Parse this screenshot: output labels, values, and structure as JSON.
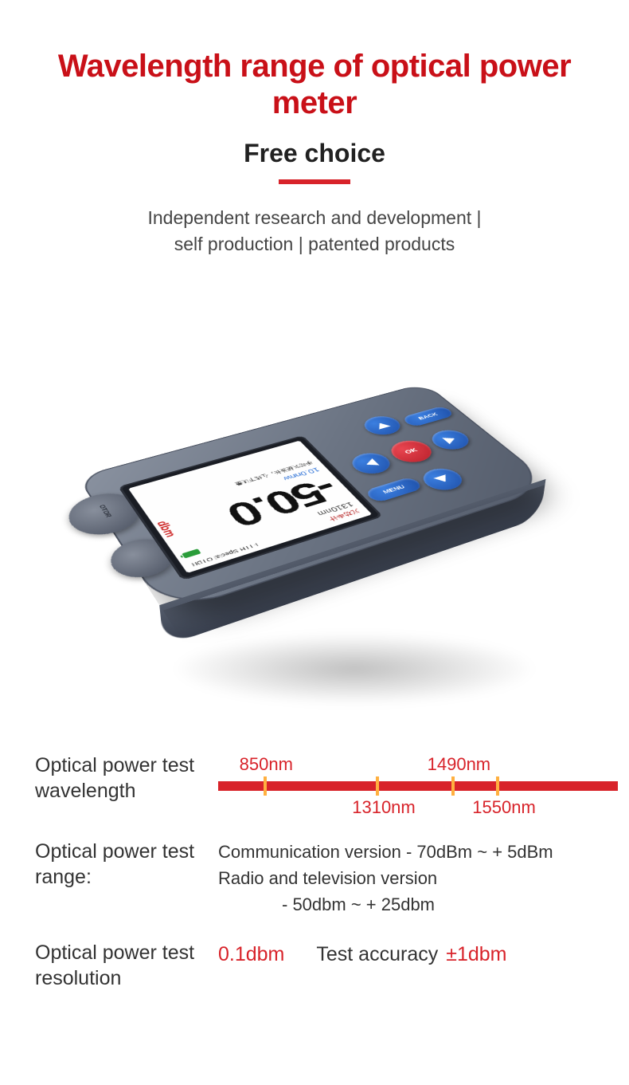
{
  "header": {
    "title": "Wavelength range of optical power meter",
    "subtitle": "Free choice",
    "tagline_line1": "Independent research and development |",
    "tagline_line2": "self production | patented products"
  },
  "colors": {
    "accent_red": "#d8232a",
    "title_red": "#c91018",
    "tick_orange": "#ffb040",
    "device_body_light": "#8a92a0",
    "device_body_dark": "#545c6b",
    "button_blue": "#1e4fa8",
    "button_red": "#b81f2a",
    "background": "#ffffff"
  },
  "device": {
    "model_line": "FTTH Special OTDR",
    "brand_cn": "光功率计",
    "wavelength": "1310nm",
    "reading": "-50.0",
    "unit_vertical": "dbm",
    "sub_reading": "10.0nnw",
    "footer_cn": "手动调整波长，在线下测量",
    "buttons": {
      "back": "BACK",
      "menu": "MENU",
      "ok": "OK"
    },
    "port_label": "OTDR"
  },
  "wavelength_axis": {
    "label": "Optical power test wavelength",
    "points": [
      {
        "value": "850nm",
        "pos_pct": 12,
        "label_top": true
      },
      {
        "value": "1310nm",
        "pos_pct": 42,
        "label_top": false
      },
      {
        "value": "1490nm",
        "pos_pct": 62,
        "label_top": true
      },
      {
        "value": "1550nm",
        "pos_pct": 74,
        "label_top": false
      }
    ],
    "bar_color": "#d8232a",
    "tick_color": "#ffb040"
  },
  "specs": {
    "range": {
      "label": "Optical power test range:",
      "line1": "Communication version - 70dBm ~ + 5dBm",
      "line2a": "Radio and television version",
      "line2b": "- 50dbm ~ + 25dbm"
    },
    "resolution": {
      "label": "Optical power test resolution",
      "value": "0.1dbm"
    },
    "accuracy": {
      "label": "Test accuracy",
      "value": "±1dbm"
    }
  }
}
